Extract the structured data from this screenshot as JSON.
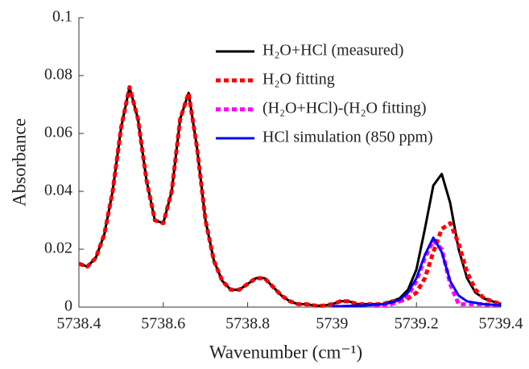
{
  "chart_data": {
    "type": "line",
    "xlabel": "Wavenumber (cm⁻¹)",
    "ylabel": "Absorbance",
    "x": [
      5738.4,
      5738.42,
      5738.44,
      5738.46,
      5738.48,
      5738.5,
      5738.52,
      5738.54,
      5738.56,
      5738.58,
      5738.6,
      5738.62,
      5738.64,
      5738.66,
      5738.68,
      5738.7,
      5738.72,
      5738.74,
      5738.76,
      5738.78,
      5738.8,
      5738.82,
      5738.84,
      5738.86,
      5738.88,
      5738.9,
      5738.92,
      5738.94,
      5738.96,
      5738.98,
      5739.0,
      5739.02,
      5739.04,
      5739.06,
      5739.08,
      5739.1,
      5739.12,
      5739.14,
      5739.16,
      5739.18,
      5739.2,
      5739.22,
      5739.24,
      5739.26,
      5739.28,
      5739.3,
      5739.32,
      5739.34,
      5739.36,
      5739.38,
      5739.4
    ],
    "series": [
      {
        "name": "H₂O+HCl (measured)",
        "color": "#000000",
        "dash": false,
        "values": [
          0.015,
          0.014,
          0.017,
          0.025,
          0.04,
          0.062,
          0.076,
          0.065,
          0.044,
          0.03,
          0.029,
          0.04,
          0.065,
          0.074,
          0.055,
          0.03,
          0.016,
          0.009,
          0.006,
          0.006,
          0.008,
          0.01,
          0.01,
          0.007,
          0.004,
          0.002,
          0.001,
          0.001,
          0.0005,
          0.0005,
          0.001,
          0.002,
          0.002,
          0.001,
          0.001,
          0.001,
          0.001,
          0.002,
          0.003,
          0.006,
          0.013,
          0.027,
          0.042,
          0.046,
          0.036,
          0.02,
          0.01,
          0.005,
          0.003,
          0.002,
          0.001
        ]
      },
      {
        "name": "H₂O fitting",
        "color": "#ff0000",
        "dash": true,
        "values": [
          0.015,
          0.014,
          0.017,
          0.025,
          0.04,
          0.062,
          0.076,
          0.065,
          0.044,
          0.03,
          0.029,
          0.04,
          0.065,
          0.074,
          0.055,
          0.03,
          0.016,
          0.009,
          0.006,
          0.006,
          0.008,
          0.01,
          0.01,
          0.007,
          0.004,
          0.002,
          0.001,
          0.001,
          0.0005,
          0.0005,
          0.001,
          0.002,
          0.002,
          0.001,
          0.001,
          0.001,
          0.001,
          0.002,
          0.002,
          0.003,
          0.005,
          0.01,
          0.019,
          0.027,
          0.029,
          0.022,
          0.012,
          0.006,
          0.003,
          0.002,
          0.001
        ]
      },
      {
        "name": "(H₂O+HCl)-(H₂O fitting)",
        "color": "#ff00ff",
        "dash": true,
        "values": [
          null,
          null,
          null,
          null,
          null,
          null,
          null,
          null,
          null,
          null,
          null,
          null,
          null,
          null,
          null,
          null,
          null,
          null,
          null,
          null,
          null,
          null,
          null,
          null,
          null,
          null,
          null,
          null,
          null,
          null,
          null,
          null,
          null,
          null,
          null,
          0.0005,
          0.0005,
          0.001,
          0.002,
          0.004,
          0.009,
          0.017,
          0.023,
          0.02,
          0.008,
          0.001,
          0.001,
          0.001,
          0.001,
          0.0005,
          0.0005
        ]
      },
      {
        "name": "HCl simulation (850 ppm)",
        "color": "#0000ff",
        "dash": false,
        "values": [
          null,
          null,
          null,
          null,
          null,
          null,
          null,
          null,
          null,
          null,
          null,
          null,
          null,
          null,
          null,
          null,
          null,
          null,
          null,
          null,
          null,
          null,
          null,
          null,
          null,
          null,
          null,
          null,
          null,
          null,
          0.0003,
          0.0003,
          0.0004,
          0.0005,
          0.0006,
          0.0008,
          0.001,
          0.0015,
          0.0025,
          0.005,
          0.01,
          0.018,
          0.024,
          0.019,
          0.009,
          0.004,
          0.002,
          0.0015,
          0.001,
          0.0008,
          0.0006
        ]
      }
    ],
    "xlim": [
      5738.4,
      5739.4
    ],
    "xticks": [
      5738.4,
      5738.6,
      5738.8,
      5739,
      5739.2,
      5739.4
    ],
    "ylim": [
      0,
      0.1
    ],
    "yticks": [
      0,
      0.02,
      0.04,
      0.06,
      0.08,
      0.1
    ],
    "grid": false,
    "legend": "upper right"
  }
}
